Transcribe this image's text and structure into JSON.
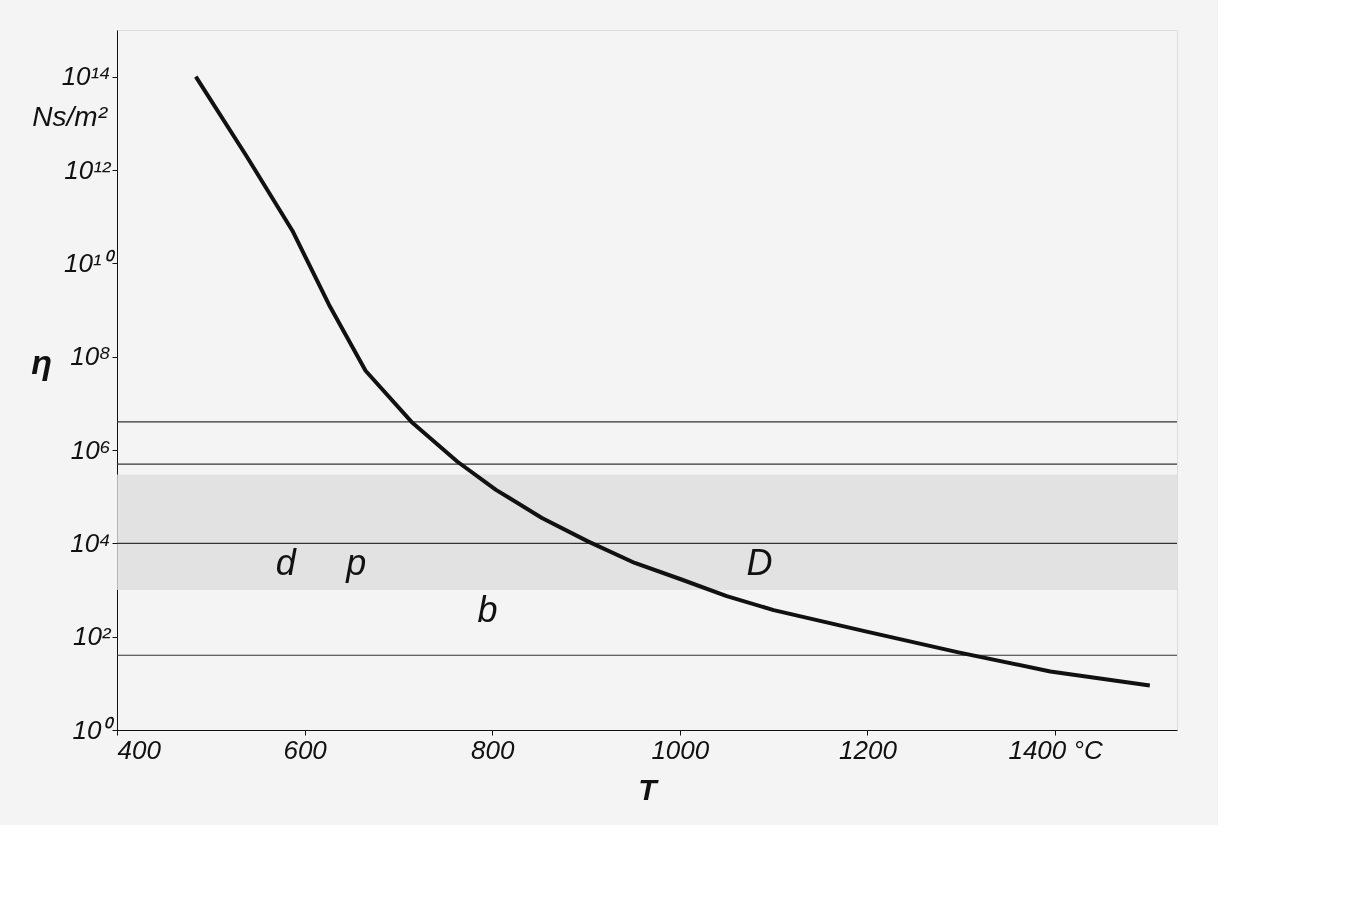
{
  "chart_data": {
    "type": "line",
    "xlabel": "T",
    "ylabel": "η",
    "x": [
      484,
      538,
      587,
      626,
      665,
      714,
      763,
      804,
      853,
      902,
      952,
      1001,
      1050,
      1100,
      1198,
      1297,
      1395,
      1501
    ],
    "series": [
      {
        "color": "#111111",
        "values": [
          100000000000000.0,
          2000000000000.0,
          50000000000.0,
          1300000000.0,
          50000000.0,
          4000000.0,
          560000.0,
          140000.0,
          35000.0,
          11000.0,
          3800.0,
          1700.0,
          740,
          370,
          130,
          46,
          18,
          9
        ]
      }
    ],
    "log": "y",
    "xlim": [
      400,
      1530
    ],
    "ylim": [
      1,
      1000000000000000.0
    ],
    "xticks": [
      400,
      600,
      800,
      1000,
      1200,
      {
        "value": 1400,
        "label": "1400 °C"
      }
    ],
    "yticks": [
      {
        "value": 1,
        "label": "10⁰"
      },
      {
        "value": 100,
        "label": "10²"
      },
      {
        "value": 10000,
        "label": "10⁴"
      },
      {
        "value": 1000000,
        "label": "10⁶"
      },
      {
        "value": 100000000,
        "label": "10⁸"
      },
      {
        "value": 10000000000,
        "label": "10¹⁰"
      },
      {
        "value": 1000000000000,
        "label": "10¹²"
      },
      {
        "value": 100000000000000,
        "label": "10¹⁴"
      }
    ],
    "grid": false,
    "marker": "none",
    "line_style": "solid",
    "bands": [
      {
        "axis": "y",
        "from": 1000,
        "to": 300000,
        "color": "#dddddd"
      }
    ],
    "ref_lines": [
      {
        "axis": "y",
        "value": 4000000,
        "color": "#333333"
      },
      {
        "axis": "y",
        "value": 500000,
        "color": "#333333"
      },
      {
        "axis": "y",
        "value": 10000,
        "color": "#333333"
      },
      {
        "axis": "y",
        "value": 40,
        "color": "#333333"
      }
    ],
    "annotations": [
      "Ns/m²",
      {
        "text": "d",
        "x": 580,
        "y": 10000
      },
      {
        "text": "p",
        "x": 655,
        "y": 10000
      },
      {
        "text": "b",
        "x": 795,
        "y": 1000
      },
      {
        "text": "D",
        "x": 1085,
        "y": 10000
      }
    ]
  }
}
